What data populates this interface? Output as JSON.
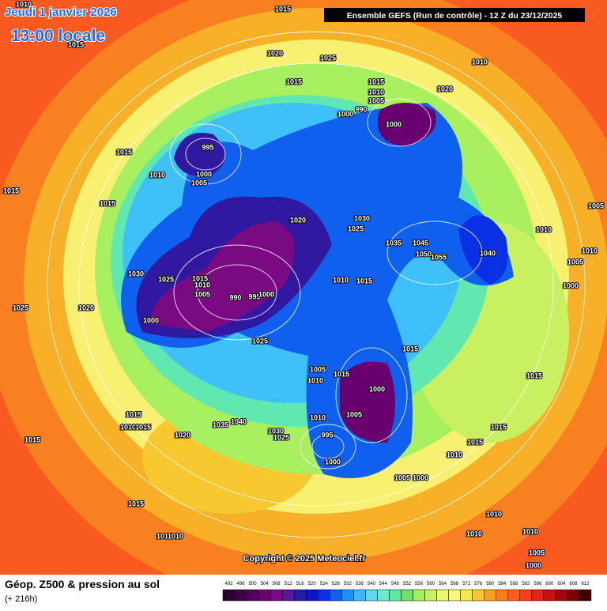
{
  "header": {
    "date": "Jeudi 1 janvier 2026",
    "time": "13:00 locale",
    "run": "Ensemble GEFS  (Run de contrôle)  -  12 Z du 23/12/2025"
  },
  "map": {
    "copyright": "Copyright © 2025 Meteociel.fr",
    "isobar_labels": [
      1010,
      1015,
      1015,
      1020,
      1025,
      1010,
      1015,
      1015,
      1010,
      1005,
      1020,
      990,
      1000,
      1000,
      995,
      1015,
      1010,
      1000,
      1005,
      1015,
      1015,
      1020,
      1030,
      1025,
      1005,
      1010,
      1035,
      1045,
      1050,
      1055,
      1040,
      1010,
      1005,
      1030,
      1025,
      1015,
      1010,
      1005,
      990,
      995,
      1000,
      1010,
      1015,
      1000,
      1025,
      1020,
      1000,
      1025,
      1015,
      1005,
      1015,
      1010,
      1000,
      1015,
      1015,
      1010,
      1015,
      1040,
      1035,
      1030,
      1025,
      1020,
      1015,
      1010,
      1005,
      995,
      1000,
      1015,
      1015,
      1010,
      1005,
      1000,
      1015,
      1010,
      1010,
      1010,
      1010,
      1010,
      1005,
      1000
    ]
  },
  "footer": {
    "title": "Géop. Z500 & pression au sol",
    "lead": "(+ 216h)",
    "scale": {
      "values": [
        492,
        496,
        500,
        504,
        508,
        512,
        516,
        520,
        524,
        528,
        532,
        536,
        540,
        544,
        548,
        552,
        556,
        560,
        564,
        568,
        572,
        576,
        580,
        584,
        588,
        592,
        596,
        600,
        604,
        608,
        612
      ],
      "colors": [
        "#2a0030",
        "#3d0045",
        "#52005a",
        "#680070",
        "#7a0a82",
        "#5a1890",
        "#2a1aa0",
        "#0a14c8",
        "#0a30e6",
        "#1060f0",
        "#2090f8",
        "#40b8f8",
        "#60d8f0",
        "#70e8d0",
        "#60e8a0",
        "#70e070",
        "#a0f060",
        "#c8f060",
        "#e8f870",
        "#f8f880",
        "#f8e850",
        "#f8c830",
        "#f8a020",
        "#f88020",
        "#f86020",
        "#f84020",
        "#e82018",
        "#c81010",
        "#a00808",
        "#780404",
        "#400000"
      ]
    }
  }
}
